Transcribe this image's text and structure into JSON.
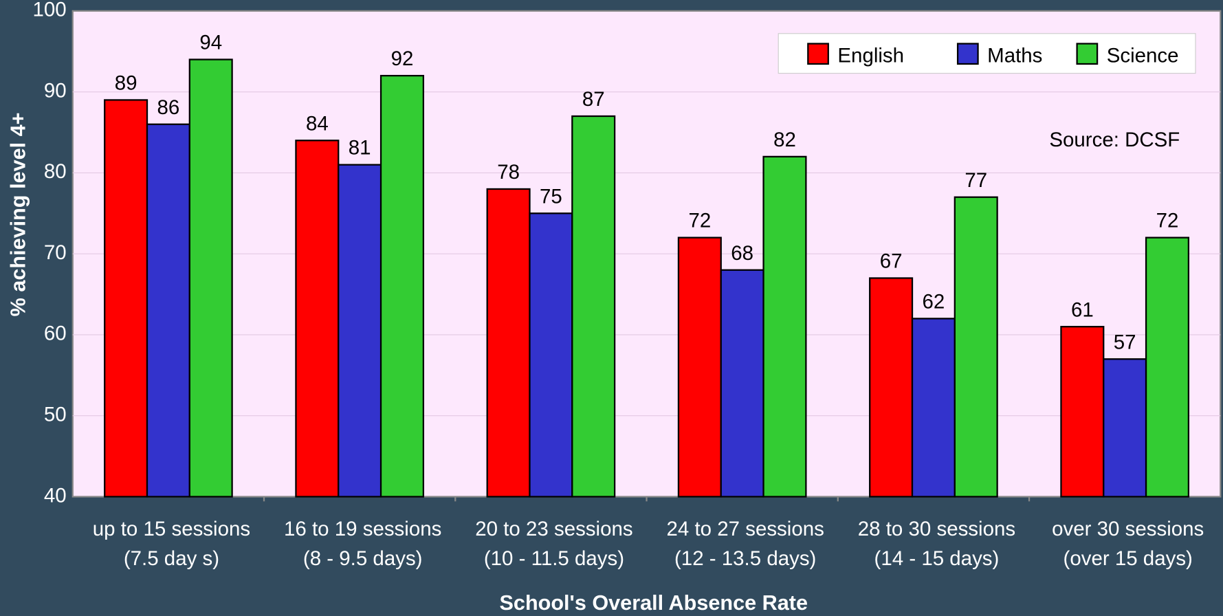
{
  "chart_data": {
    "type": "bar",
    "x_label": "School's Overall Absence Rate",
    "y_label": "% achieving level 4+",
    "annotation": "Source: DCSF",
    "categories": [
      [
        "up to 15 sessions",
        "(7.5 day s)"
      ],
      [
        "16 to 19 sessions",
        "(8 - 9.5 days)"
      ],
      [
        "20 to 23 sessions",
        "(10 - 11.5 days)"
      ],
      [
        "24 to 27 sessions",
        "(12 - 13.5 days)"
      ],
      [
        "28 to 30 sessions",
        "(14 - 15 days)"
      ],
      [
        "over 30 sessions",
        "(over 15 days)"
      ]
    ],
    "series": [
      {
        "name": "English",
        "color": "#ff0000",
        "values": [
          89,
          84,
          78,
          72,
          67,
          61
        ]
      },
      {
        "name": "Maths",
        "color": "#3333cc",
        "values": [
          86,
          81,
          75,
          68,
          62,
          57
        ]
      },
      {
        "name": "Science",
        "color": "#33cc33",
        "values": [
          94,
          92,
          87,
          82,
          77,
          72
        ]
      }
    ],
    "ylim": [
      40,
      100
    ],
    "yticks": [
      40,
      50,
      60,
      70,
      80,
      90,
      100
    ],
    "grid": true,
    "legend": "upper right"
  }
}
